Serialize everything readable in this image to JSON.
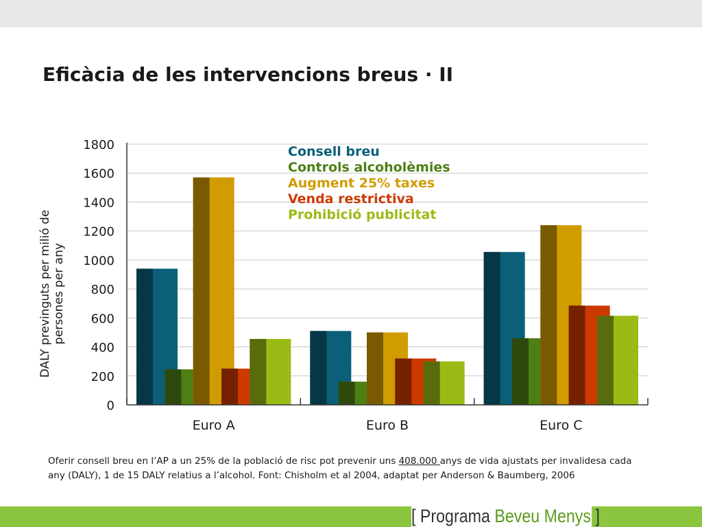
{
  "slide": {
    "title": "Eficàcia de les intervencions breus · II"
  },
  "chart_data": {
    "type": "bar",
    "categories": [
      "Euro A",
      "Euro B",
      "Euro C"
    ],
    "series": [
      {
        "name": "Consell breu",
        "values": [
          940,
          510,
          1055
        ],
        "color": "#0b5f78"
      },
      {
        "name": "Controls alcoholèmies",
        "values": [
          245,
          160,
          460
        ],
        "color": "#4e7f14"
      },
      {
        "name": "Augment 25% taxes",
        "values": [
          1570,
          500,
          1240
        ],
        "color": "#d09c00"
      },
      {
        "name": "Venda restrictiva",
        "values": [
          250,
          320,
          685
        ],
        "color": "#cc3a00"
      },
      {
        "name": "Prohibició publicitat",
        "values": [
          455,
          300,
          615
        ],
        "color": "#9abb16"
      }
    ],
    "ylabel": "DALY previnguts per milió de persones per any",
    "xlabel": "",
    "ylim": [
      0,
      1800
    ],
    "yticks": [
      0,
      200,
      400,
      600,
      800,
      1000,
      1200,
      1400,
      1600,
      1800
    ],
    "grid": true,
    "legend_position": "top-center"
  },
  "caption": {
    "before": "Oferir consell breu en l’AP a un 25% de la població de risc pot prevenir uns ",
    "highlight": "408.000 ",
    "after": "anys de vida ajustats per invalidesa cada any (DALY), 1 de 15 DALY relatius a l’alcohol. Font: Chisholm et al 2004, adaptat per Anderson & Baumberg, 2006"
  },
  "footer": {
    "open_bracket": "[",
    "brand_word1": "Programa",
    "brand_word2": "Beveu Menys",
    "close_bracket": "]"
  }
}
